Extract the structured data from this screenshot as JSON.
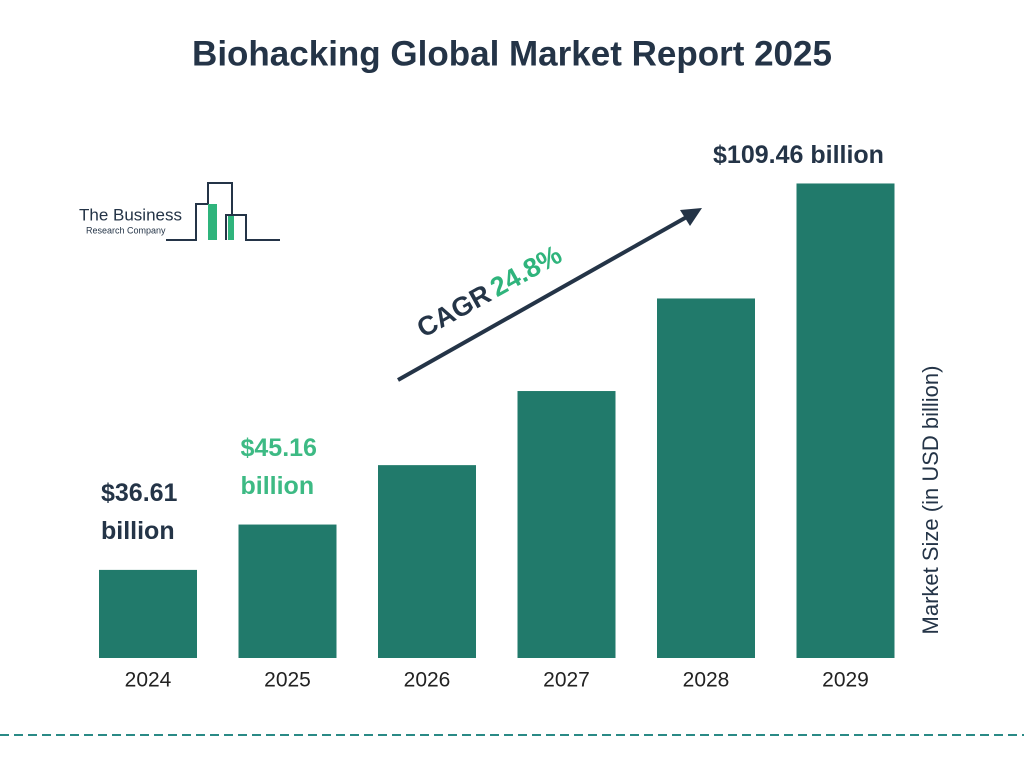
{
  "chart_data": {
    "type": "bar",
    "title": "Biohacking Global Market Report 2025",
    "categories": [
      "2024",
      "2025",
      "2026",
      "2027",
      "2028",
      "2029"
    ],
    "values": [
      36.61,
      45.16,
      56.36,
      70.33,
      87.78,
      109.46
    ],
    "value_labels": [
      "$36.61 billion",
      "$45.16 billion",
      null,
      null,
      null,
      "$109.46 billion"
    ],
    "y_label": "Market Size (in USD billion)",
    "color": "#217a6b",
    "ylim": [
      20,
      112
    ],
    "annotations": {
      "cagr_label": "CAGR",
      "cagr_value": "24.8%"
    }
  },
  "logo": {
    "line1": "The Business",
    "line2": "Research Company"
  }
}
